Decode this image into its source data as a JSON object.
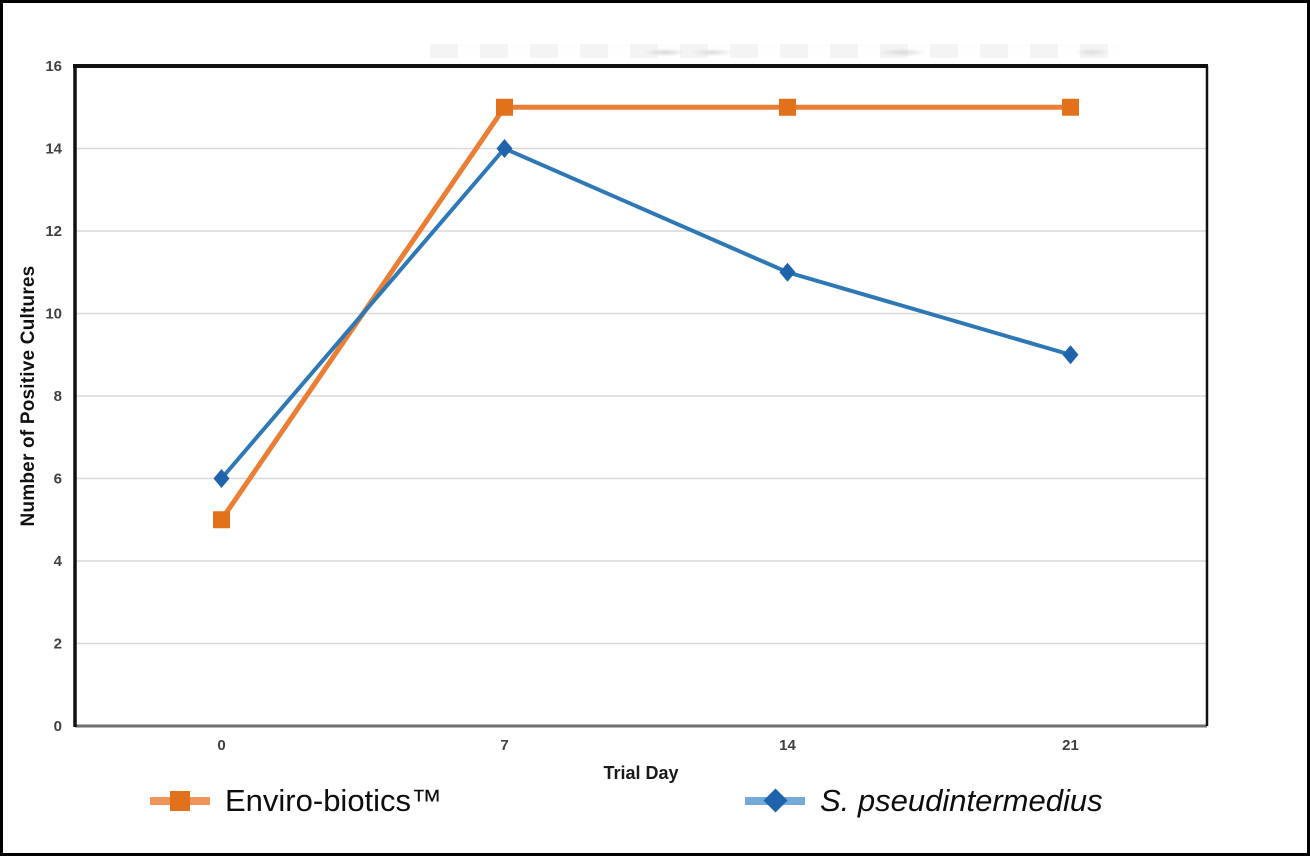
{
  "chart_data": {
    "type": "line",
    "title": "",
    "categories": [
      "0",
      "7",
      "14",
      "21"
    ],
    "series": [
      {
        "name": "Enviro-biotics™",
        "values": [
          5,
          15,
          15,
          15
        ],
        "color": "#EA7E35",
        "marker_color": "#E2711C",
        "legend_line_color": "#F0955A",
        "marker": "square",
        "line_width": 5
      },
      {
        "name": "S. pseudintermedius",
        "values": [
          6,
          14,
          11,
          9
        ],
        "color": "#2E79B5",
        "marker_color": "#1F63AC",
        "legend_line_color": "#74A9D8",
        "marker": "diamond",
        "line_width": 4
      }
    ],
    "xlabel": "Trial Day",
    "ylabel": "Number of Positive Cultures",
    "ylim": [
      0,
      16
    ],
    "ytick_step": 2,
    "grid": "horizontal",
    "legend_position": "bottom"
  },
  "colors": {
    "background": "#FFFFFF",
    "frame_border": "#000000",
    "grid": "#D9D9D9",
    "axis_dark": "#111111",
    "axis_bottom": "#6E6E6E",
    "tick_text": "#404040"
  }
}
